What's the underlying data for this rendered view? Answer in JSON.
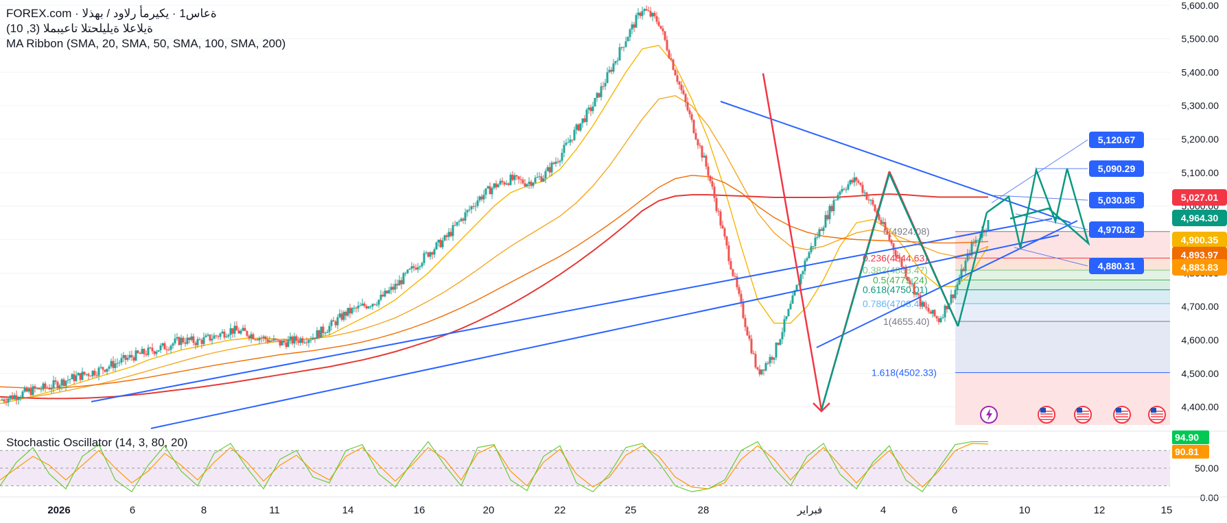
{
  "header": {
    "line1": "FOREX.com · ةعاس1 · يكيرمأ رلاود / بهذلا",
    "line2": "ةيلاعلا ةيليلحتلا تاعيبملا (3, 10)",
    "line3": "MA Ribbon (SMA, 20, SMA, 50, SMA, 100, SMA, 200)"
  },
  "oscillator": {
    "label": "Stochastic Oscillator (14, 3, 80, 20)",
    "k_value": "94.90",
    "d_value": "90.81",
    "ticks": [
      "50.00",
      "0.00"
    ]
  },
  "colors": {
    "up_candle": "#26a69a",
    "down_candle": "#ef5350",
    "trendline": "#2962ff",
    "arrow_green": "#089981",
    "arrow_red": "#f23645",
    "sma20": "#f7b500",
    "sma50": "#f5a623",
    "sma100": "#ef6c00",
    "sma200": "#e53935"
  },
  "chart_data": {
    "type": "line",
    "title": "",
    "price_ticks": [
      "5,600.00",
      "5,500.00",
      "5,400.00",
      "5,300.00",
      "5,200.00",
      "5,100.00",
      "5,000.00",
      "4,900.00",
      "4,800.00",
      "4,700.00",
      "4,600.00",
      "4,500.00",
      "4,400.00"
    ],
    "x_ticks": [
      "2026",
      "6",
      "8",
      "11",
      "14",
      "16",
      "20",
      "22",
      "25",
      "28",
      "فبراير",
      "4",
      "6",
      "10",
      "12",
      "15"
    ],
    "ylim": [
      4350,
      5620
    ],
    "price_tags": [
      {
        "value": "5,120.67",
        "kind": "target"
      },
      {
        "value": "5,090.29",
        "kind": "target"
      },
      {
        "value": "5,030.85",
        "kind": "target"
      },
      {
        "value": "4,970.82",
        "kind": "target"
      },
      {
        "value": "4,880.31",
        "kind": "target"
      },
      {
        "value": "5,027.01",
        "kind": "sma200"
      },
      {
        "value": "4,964.30",
        "kind": "last"
      },
      {
        "value": "4,900.35",
        "kind": "sma"
      },
      {
        "value": "4,893.97",
        "kind": "sma"
      },
      {
        "value": "4,883.83",
        "kind": "sma"
      }
    ],
    "fibonacci": [
      {
        "label": "0(4924.08)",
        "value": 4924.08
      },
      {
        "label": "0.236(4844.63)",
        "value": 4844.63
      },
      {
        "label": "0.382(4808.47)",
        "value": 4808.47
      },
      {
        "label": "0.5(4779.24)",
        "value": 4779.24
      },
      {
        "label": "0.618(4750.01)",
        "value": 4750.01
      },
      {
        "label": "0.786(4708.40)",
        "value": 4708.4
      },
      {
        "label": "1(4655.40)",
        "value": 4655.4
      },
      {
        "label": "1.618(4502.33)",
        "value": 4502.33
      }
    ],
    "series": [
      {
        "name": "close",
        "values": [
          4420,
          4435,
          4450,
          4460,
          4480,
          4495,
          4510,
          4530,
          4550,
          4565,
          4580,
          4600,
          4595,
          4610,
          4630,
          4620,
          4605,
          4590,
          4600,
          4610,
          4640,
          4680,
          4700,
          4720,
          4760,
          4810,
          4860,
          4900,
          4960,
          5020,
          5060,
          5080,
          5070,
          5090,
          5150,
          5230,
          5300,
          5400,
          5500,
          5590,
          5550,
          5400,
          5250,
          5100,
          4900,
          4700,
          4500,
          4560,
          4700,
          4850,
          4950,
          5050,
          5080,
          5000,
          4900,
          4800,
          4700,
          4660,
          4750,
          4880,
          4950
        ]
      },
      {
        "name": "SMA 20",
        "values": [
          4410,
          4420,
          4432,
          4445,
          4460,
          4475,
          4490,
          4505,
          4520,
          4540,
          4555,
          4570,
          4580,
          4590,
          4600,
          4605,
          4605,
          4602,
          4600,
          4605,
          4615,
          4640,
          4665,
          4690,
          4720,
          4760,
          4800,
          4850,
          4900,
          4950,
          5000,
          5040,
          5060,
          5075,
          5110,
          5170,
          5240,
          5320,
          5400,
          5470,
          5480,
          5420,
          5320,
          5200,
          5050,
          4880,
          4720,
          4650,
          4650,
          4700,
          4780,
          4880,
          4950,
          4960,
          4930,
          4870,
          4800,
          4760,
          4760,
          4800,
          4880
        ]
      },
      {
        "name": "SMA 50",
        "values": [
          4420,
          4424,
          4430,
          4438,
          4448,
          4458,
          4468,
          4480,
          4494,
          4508,
          4522,
          4536,
          4550,
          4562,
          4572,
          4582,
          4590,
          4596,
          4600,
          4604,
          4610,
          4620,
          4632,
          4648,
          4666,
          4690,
          4716,
          4744,
          4776,
          4810,
          4846,
          4880,
          4910,
          4940,
          4970,
          5010,
          5060,
          5120,
          5190,
          5260,
          5320,
          5330,
          5300,
          5240,
          5160,
          5070,
          4980,
          4920,
          4880,
          4870,
          4880,
          4900,
          4920,
          4930,
          4920,
          4900,
          4880,
          4860,
          4850,
          4860,
          4880
        ]
      },
      {
        "name": "SMA 100",
        "values": [
          4460,
          4458,
          4456,
          4456,
          4458,
          4462,
          4467,
          4473,
          4480,
          4488,
          4497,
          4506,
          4515,
          4524,
          4532,
          4540,
          4548,
          4556,
          4562,
          4568,
          4576,
          4584,
          4594,
          4606,
          4620,
          4636,
          4654,
          4674,
          4696,
          4720,
          4746,
          4772,
          4798,
          4824,
          4850,
          4880,
          4912,
          4946,
          4982,
          5020,
          5056,
          5082,
          5092,
          5088,
          5070,
          5040,
          5000,
          4966,
          4940,
          4922,
          4910,
          4904,
          4900,
          4898,
          4896,
          4894,
          4892,
          4890,
          4890,
          4892,
          4894
        ]
      },
      {
        "name": "SMA 200",
        "values": [
          4430,
          4428,
          4426,
          4425,
          4425,
          4426,
          4428,
          4431,
          4435,
          4440,
          4446,
          4452,
          4458,
          4465,
          4472,
          4480,
          4488,
          4496,
          4504,
          4512,
          4520,
          4530,
          4540,
          4552,
          4565,
          4580,
          4596,
          4614,
          4634,
          4656,
          4680,
          4706,
          4734,
          4764,
          4796,
          4830,
          4866,
          4904,
          4944,
          4986,
          5016,
          5030,
          5034,
          5034,
          5032,
          5030,
          5028,
          5026,
          5026,
          5026,
          5026,
          5027,
          5030,
          5034,
          5036,
          5034,
          5030,
          5027,
          5027,
          5027,
          5027
        ]
      }
    ],
    "stochastic_k": [
      20,
      60,
      85,
      40,
      15,
      70,
      90,
      30,
      10,
      55,
      88,
      45,
      20,
      75,
      92,
      50,
      15,
      65,
      80,
      35,
      25,
      80,
      90,
      40,
      18,
      60,
      95,
      55,
      20,
      85,
      90,
      30,
      12,
      70,
      88,
      25,
      10,
      40,
      85,
      92,
      60,
      20,
      10,
      15,
      30,
      80,
      95,
      50,
      20,
      70,
      92,
      40,
      15,
      60,
      88,
      30,
      10,
      50,
      90,
      95,
      94.9
    ],
    "stochastic_d": [
      30,
      50,
      70,
      55,
      30,
      55,
      80,
      50,
      25,
      45,
      75,
      55,
      30,
      60,
      85,
      60,
      28,
      55,
      72,
      45,
      30,
      70,
      85,
      55,
      28,
      55,
      85,
      65,
      30,
      75,
      88,
      45,
      20,
      60,
      82,
      40,
      18,
      35,
      72,
      88,
      70,
      35,
      18,
      15,
      25,
      65,
      88,
      65,
      30,
      60,
      85,
      55,
      25,
      55,
      80,
      45,
      18,
      45,
      80,
      92,
      90.81
    ]
  }
}
